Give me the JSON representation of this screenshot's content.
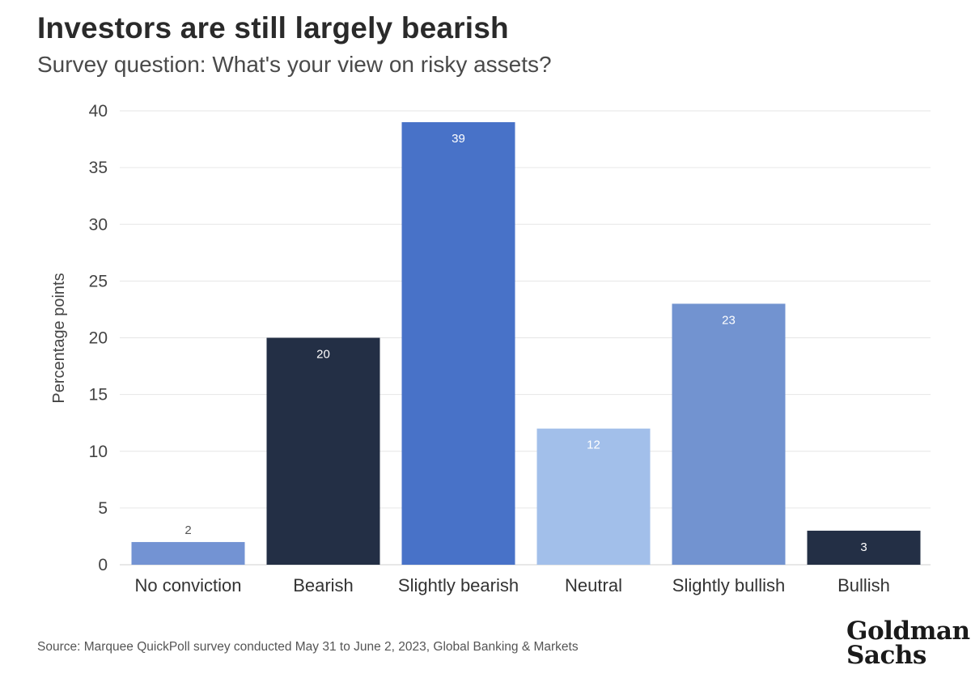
{
  "header": {
    "title": "Investors are still largely bearish",
    "subtitle": "Survey question: What's your view on risky assets?"
  },
  "footer": {
    "source": "Source: Marquee QuickPoll survey conducted May 31 to June 2, 2023, Global Banking & Markets",
    "logo_line1": "Goldman",
    "logo_line2": "Sachs"
  },
  "chart_data": {
    "type": "bar",
    "title": "Investors are still largely bearish",
    "subtitle": "Survey question: What's your view on risky assets?",
    "xlabel": "",
    "ylabel": "Percentage points",
    "ylim": [
      0,
      40
    ],
    "yticks": [
      0,
      5,
      10,
      15,
      20,
      25,
      30,
      35,
      40
    ],
    "grid": true,
    "categories": [
      "No conviction",
      "Bearish",
      "Slightly bearish",
      "Neutral",
      "Slightly bullish",
      "Bullish"
    ],
    "values": [
      2,
      20,
      39,
      12,
      23,
      3
    ],
    "bar_colors": [
      "#7393d3",
      "#232f45",
      "#4872c8",
      "#a2bfea",
      "#7293d0",
      "#232f45"
    ],
    "label_colors": [
      "#555555",
      "#ffffff",
      "#ffffff",
      "#ffffff",
      "#ffffff",
      "#ffffff"
    ]
  }
}
